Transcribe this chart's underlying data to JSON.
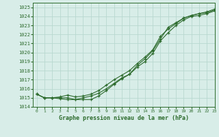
{
  "title": "Graphe pression niveau de la mer (hPa)",
  "xlim": [
    -0.5,
    23
  ],
  "ylim": [
    1014,
    1025.5
  ],
  "yticks": [
    1014,
    1015,
    1016,
    1017,
    1018,
    1019,
    1020,
    1021,
    1022,
    1023,
    1024,
    1025
  ],
  "xticks": [
    0,
    1,
    2,
    3,
    4,
    5,
    6,
    7,
    8,
    9,
    10,
    11,
    12,
    13,
    14,
    15,
    16,
    17,
    18,
    19,
    20,
    21,
    22,
    23
  ],
  "bg_color": "#d8ede8",
  "grid_color": "#b8d8d0",
  "line_color": "#2d6b2d",
  "line1_x": [
    0,
    1,
    2,
    3,
    4,
    5,
    6,
    7,
    8,
    9,
    10,
    11,
    12,
    13,
    14,
    15,
    16,
    17,
    18,
    19,
    20,
    21,
    22,
    23
  ],
  "line1_y": [
    1015.4,
    1015.0,
    1015.0,
    1014.9,
    1014.8,
    1014.8,
    1015.0,
    1015.2,
    1015.5,
    1016.0,
    1016.6,
    1017.2,
    1017.6,
    1018.4,
    1019.0,
    1019.9,
    1021.3,
    1022.2,
    1023.0,
    1023.6,
    1024.0,
    1024.1,
    1024.3,
    1024.6
  ],
  "line2_x": [
    0,
    1,
    2,
    3,
    4,
    5,
    6,
    7,
    8,
    9,
    10,
    11,
    12,
    13,
    14,
    15,
    16,
    17,
    18,
    19,
    20,
    21,
    22,
    23
  ],
  "line2_y": [
    1015.4,
    1015.0,
    1015.0,
    1015.1,
    1015.3,
    1015.1,
    1015.2,
    1015.4,
    1015.8,
    1016.4,
    1017.0,
    1017.5,
    1018.0,
    1018.8,
    1019.5,
    1020.3,
    1021.8,
    1022.6,
    1023.2,
    1023.8,
    1024.1,
    1024.3,
    1024.4,
    1024.7
  ],
  "line3_x": [
    0,
    1,
    2,
    3,
    4,
    5,
    6,
    7,
    8,
    9,
    10,
    11,
    12,
    13,
    14,
    15,
    16,
    17,
    18,
    19,
    20,
    21,
    22,
    23
  ],
  "line3_y": [
    1015.4,
    1015.0,
    1015.0,
    1015.0,
    1015.0,
    1014.8,
    1014.8,
    1014.8,
    1015.2,
    1015.8,
    1016.5,
    1017.1,
    1017.6,
    1018.6,
    1019.3,
    1020.2,
    1021.5,
    1022.8,
    1023.3,
    1023.8,
    1024.1,
    1024.3,
    1024.5,
    1024.8
  ]
}
